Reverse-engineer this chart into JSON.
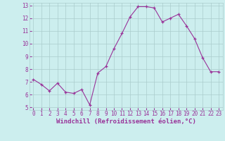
{
  "x": [
    0,
    1,
    2,
    3,
    4,
    5,
    6,
    7,
    8,
    9,
    10,
    11,
    12,
    13,
    14,
    15,
    16,
    17,
    18,
    19,
    20,
    21,
    22,
    23
  ],
  "y": [
    7.2,
    6.8,
    6.3,
    6.9,
    6.2,
    6.1,
    6.4,
    5.2,
    7.7,
    8.2,
    9.6,
    10.8,
    12.1,
    12.9,
    12.9,
    12.8,
    11.7,
    12.0,
    12.3,
    11.4,
    10.4,
    8.9,
    7.8,
    7.8
  ],
  "line_color": "#993399",
  "marker": "+",
  "marker_color": "#993399",
  "bg_color": "#cceeee",
  "grid_color": "#aacccc",
  "xlabel": "Windchill (Refroidissement éolien,°C)",
  "xlabel_color": "#993399",
  "tick_color": "#993399",
  "ylim": [
    5,
    13
  ],
  "xlim": [
    -0.5,
    23.5
  ],
  "yticks": [
    5,
    6,
    7,
    8,
    9,
    10,
    11,
    12,
    13
  ],
  "xticks": [
    0,
    1,
    2,
    3,
    4,
    5,
    6,
    7,
    8,
    9,
    10,
    11,
    12,
    13,
    14,
    15,
    16,
    17,
    18,
    19,
    20,
    21,
    22,
    23
  ],
  "xtick_labels": [
    "0",
    "1",
    "2",
    "3",
    "4",
    "5",
    "6",
    "7",
    "8",
    "9",
    "10",
    "11",
    "12",
    "13",
    "14",
    "15",
    "16",
    "17",
    "18",
    "19",
    "20",
    "21",
    "22",
    "23"
  ],
  "xlabel_fontsize": 6.5,
  "tick_fontsize": 5.5
}
